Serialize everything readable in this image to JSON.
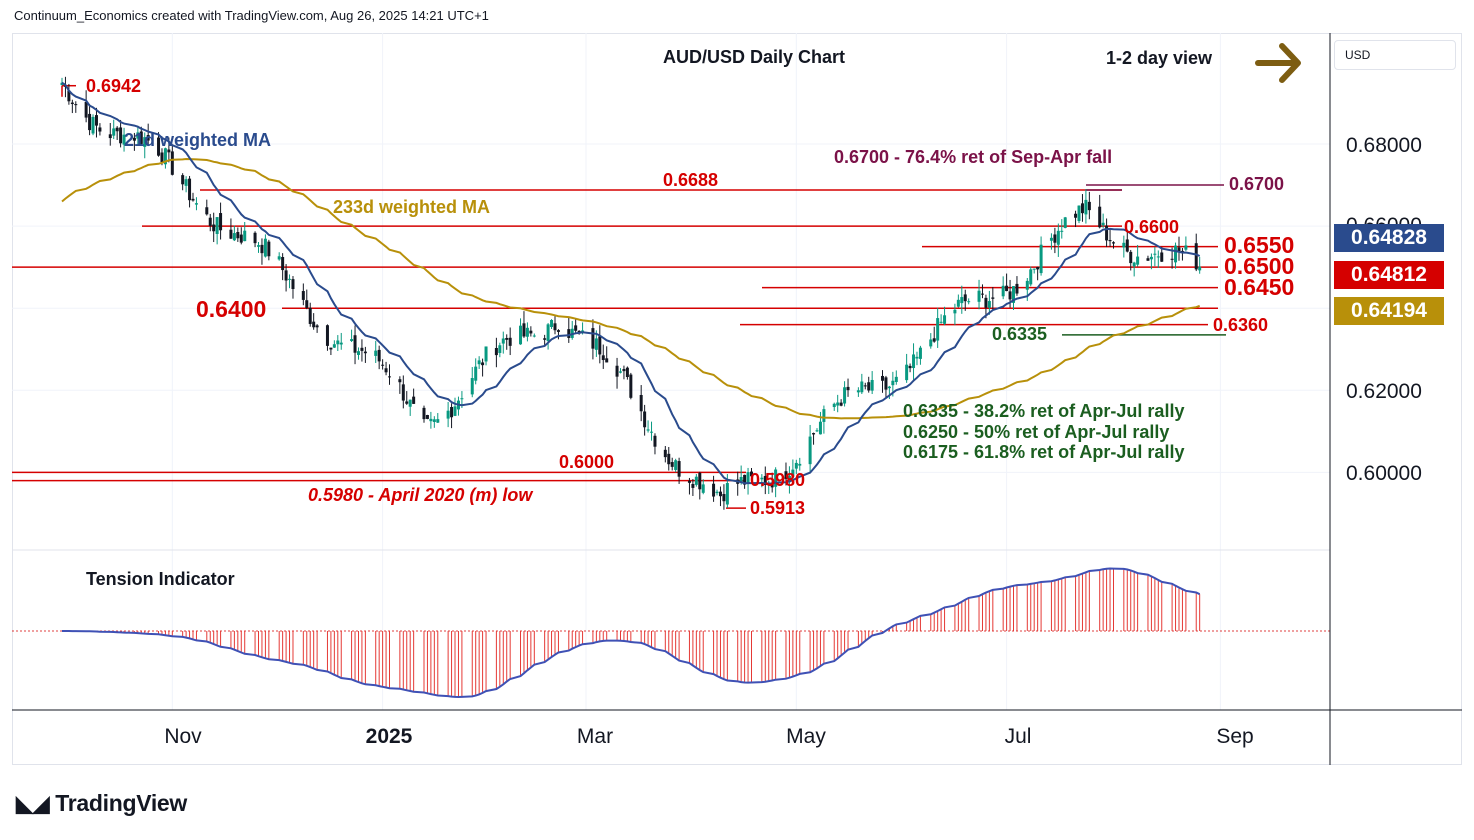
{
  "header": {
    "credit": "Continuum_Economics created with TradingView.com, Aug 26, 2025 14:21 UTC+1"
  },
  "currency_selector": "USD",
  "price_badges": {
    "last": "0.64828",
    "ma21": "0.64812",
    "ma233": "0.64194"
  },
  "colors": {
    "up": "#089981",
    "down": "#131722",
    "level_red": "#d50000",
    "ma21": "#2a4b8d",
    "ma233": "#b8900a",
    "green_text": "#1b5e20",
    "maroon": "#7b1248",
    "arrow": "#7d5d12",
    "badge_blue": "#2a4b8d",
    "badge_red": "#d50000",
    "badge_gold": "#b8900a"
  },
  "logo": "TradingView",
  "chart_data": {
    "type": "candlestick",
    "title": "AUD/USD Daily Chart",
    "view_label": "1-2 day view",
    "view_direction": "right",
    "x_tick_labels": [
      "Nov",
      "2025",
      "Mar",
      "May",
      "Jul",
      "Sep"
    ],
    "y_tick_labels": [
      "0.68000",
      "0.66000",
      "0.62000",
      "0.60000"
    ],
    "ylim": [
      0.5835,
      0.6985
    ],
    "price_labels": {
      "p6942": "0.6942",
      "p6688": "0.6688",
      "p6600": "0.6600",
      "p6550": "0.6550",
      "p6500": "0.6500",
      "p6450": "0.6450",
      "p6400": "0.6400",
      "p6360": "0.6360",
      "p6335": "0.6335",
      "p6000": "0.6000",
      "p5980": "0.5980",
      "p5913": "0.5913",
      "p6700": "0.6700"
    },
    "annotations": {
      "ma21_label": "21d weighted MA",
      "ma233_label": "233d weighted MA",
      "ret_6700": "0.6700 - 76.4% ret of Sep-Apr fall",
      "low_2020": "0.5980 - April 2020 (m) low",
      "ret_382": "0.6335 - 38.2% ret of Apr-Jul rally",
      "ret_50": "0.6250 - 50% ret of Apr-Jul rally",
      "ret_618": "0.6175 - 61.8% ret of Apr-Jul rally"
    },
    "horizontal_levels": [
      0.6688,
      0.66,
      0.655,
      0.65,
      0.645,
      0.64,
      0.636,
      0.6335,
      0.6,
      0.598,
      0.67
    ],
    "key_points": [
      {
        "date": "2024-09-30",
        "close": 0.6942
      },
      {
        "date": "2024-11-07",
        "close": 0.6688
      },
      {
        "date": "2025-01-13",
        "close": 0.613
      },
      {
        "date": "2025-02-21",
        "close": 0.64
      },
      {
        "date": "2025-04-09",
        "close": 0.5913
      },
      {
        "date": "2025-07-24",
        "close": 0.662
      },
      {
        "date": "2025-08-26",
        "close": 0.6481
      }
    ],
    "last_price": 0.64828,
    "ma21_last": 0.64812,
    "ma233_last": 0.64194,
    "oscillator": {
      "label": "Tension Indicator"
    }
  }
}
